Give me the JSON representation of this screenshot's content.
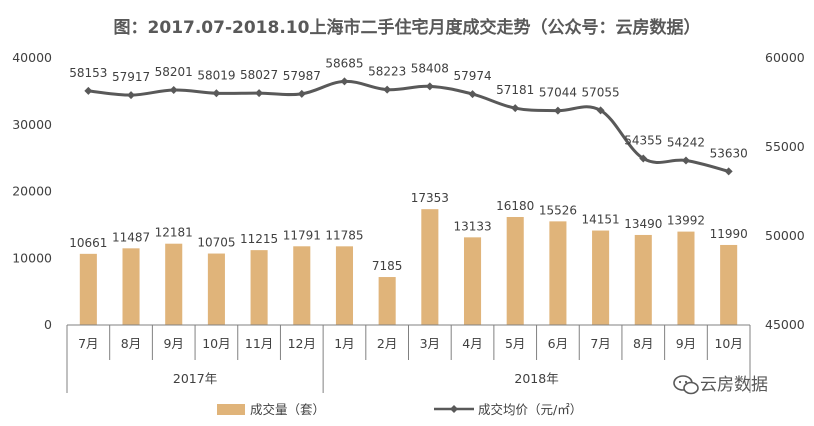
{
  "chart_data": {
    "type": "bar",
    "title": "图：2017.07-2018.10上海市二手住宅月度成交走势（公众号：云房数据）",
    "categories": [
      "7月",
      "8月",
      "9月",
      "10月",
      "11月",
      "12月",
      "1月",
      "2月",
      "3月",
      "4月",
      "5月",
      "6月",
      "7月",
      "8月",
      "9月",
      "10月"
    ],
    "year_groups": [
      {
        "label": "2017年",
        "count": 6
      },
      {
        "label": "2018年",
        "count": 10
      }
    ],
    "series": [
      {
        "name": "成交量（套）",
        "type": "bar",
        "axis": "left",
        "color": "#E0B47A",
        "values": [
          10661,
          11487,
          12181,
          10705,
          11215,
          11791,
          11785,
          7185,
          17353,
          13133,
          16180,
          15526,
          14151,
          13490,
          13992,
          11990
        ]
      },
      {
        "name": "成交均价（元/㎡）",
        "type": "line",
        "axis": "right",
        "color": "#595959",
        "values": [
          58153,
          57917,
          58201,
          58019,
          58027,
          57987,
          58685,
          58223,
          58408,
          57974,
          57181,
          57044,
          57055,
          54355,
          54242,
          53630
        ]
      }
    ],
    "left_axis": {
      "ylim": [
        0,
        40000
      ],
      "ticks": [
        0,
        10000,
        20000,
        30000,
        40000
      ],
      "labels": [
        "0",
        "10000",
        "20000",
        "30000",
        "40000"
      ]
    },
    "right_axis": {
      "ylim": [
        45000,
        60000
      ],
      "ticks": [
        45000,
        50000,
        55000,
        60000
      ],
      "labels": [
        "45000",
        "50000",
        "55000",
        "60000"
      ]
    },
    "legend_position": "bottom",
    "grid": false
  },
  "watermark": {
    "text": "云房数据",
    "icon": "wechat-icon"
  }
}
